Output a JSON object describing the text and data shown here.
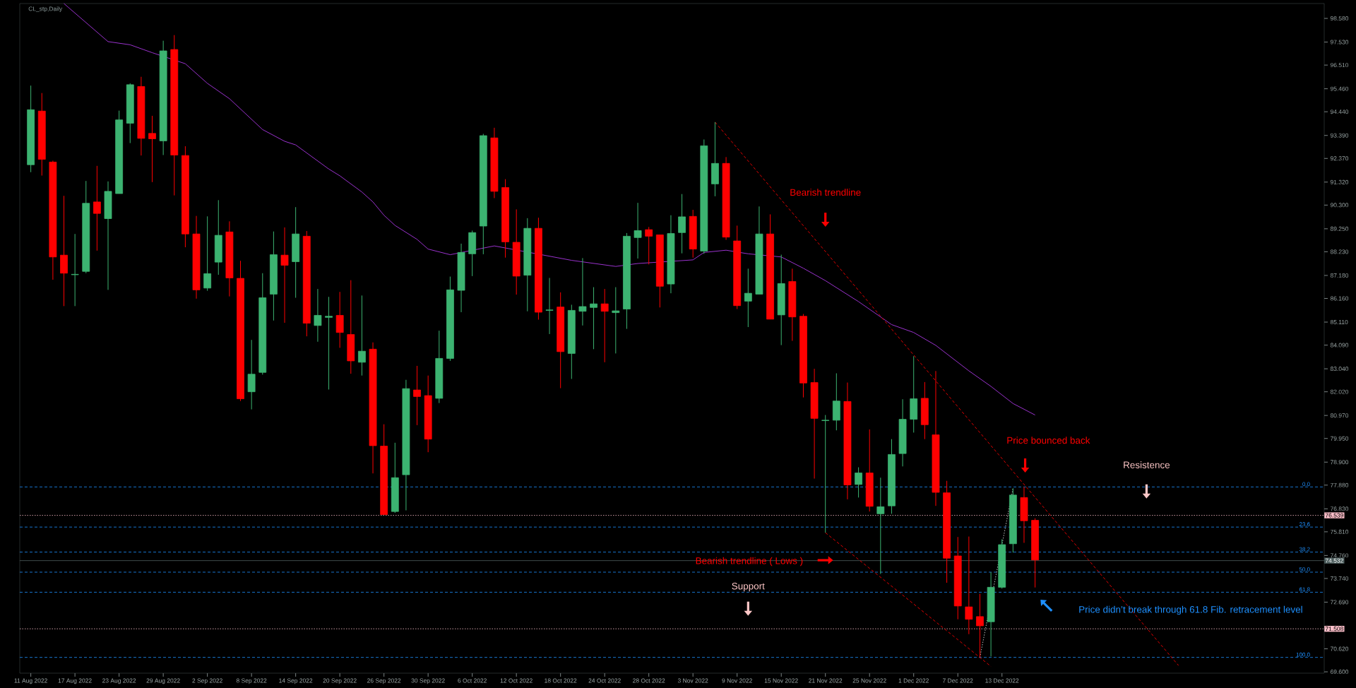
{
  "chart_data": {
    "type": "candlestick",
    "title": "CL_stp,Daily",
    "categories": [
      "11 Aug 2022",
      null,
      null,
      null,
      "17 Aug 2022",
      null,
      null,
      null,
      "23 Aug 2022",
      null,
      null,
      null,
      "29 Aug 2022",
      null,
      null,
      null,
      "2 Sep 2022",
      null,
      null,
      null,
      "8 Sep 2022",
      null,
      null,
      null,
      "14 Sep 2022",
      null,
      null,
      null,
      "20 Sep 2022",
      null,
      null,
      null,
      "26 Sep 2022",
      null,
      null,
      null,
      "30 Sep 2022",
      null,
      null,
      null,
      "6 Oct 2022",
      null,
      null,
      null,
      "12 Oct 2022",
      null,
      null,
      null,
      "18 Oct 2022",
      null,
      null,
      null,
      "24 Oct 2022",
      null,
      null,
      null,
      "28 Oct 2022",
      null,
      null,
      null,
      "3 Nov 2022",
      null,
      null,
      null,
      "9 Nov 2022",
      null,
      null,
      null,
      "15 Nov 2022",
      null,
      null,
      null,
      "21 Nov 2022",
      null,
      null,
      null,
      "25 Nov 2022",
      null,
      null,
      null,
      "1 Dec 2022",
      null,
      null,
      null,
      "7 Dec 2022",
      null,
      null,
      null,
      "13 Dec 2022",
      null,
      null,
      null,
      null,
      null,
      null,
      null,
      null,
      null,
      null,
      null,
      null,
      null,
      null,
      null,
      null,
      null,
      null,
      null,
      null,
      null,
      null,
      null,
      null,
      null,
      null,
      null,
      null,
      null
    ],
    "ohlc": [
      [
        92.09,
        95.6,
        91.76,
        94.53
      ],
      [
        94.47,
        95.27,
        91.61,
        92.33
      ],
      [
        92.21,
        92.27,
        86.99,
        88.0
      ],
      [
        88.08,
        90.71,
        85.82,
        87.28
      ],
      [
        87.21,
        89.02,
        85.82,
        87.23
      ],
      [
        87.36,
        91.37,
        87.28,
        90.38
      ],
      [
        90.44,
        92.04,
        88.28,
        89.93
      ],
      [
        89.7,
        91.35,
        86.54,
        90.91
      ],
      [
        90.81,
        94.49,
        90.81,
        94.08
      ],
      [
        93.93,
        95.7,
        93.05,
        95.64
      ],
      [
        95.56,
        95.99,
        92.5,
        93.26
      ],
      [
        93.48,
        94.26,
        91.32,
        93.24
      ],
      [
        93.15,
        97.59,
        92.52,
        97.14
      ],
      [
        97.2,
        97.84,
        90.73,
        92.52
      ],
      [
        92.5,
        92.91,
        88.43,
        89.02
      ],
      [
        89.02,
        89.82,
        86.15,
        86.54
      ],
      [
        86.62,
        89.8,
        86.5,
        87.26
      ],
      [
        87.77,
        90.52,
        87.21,
        88.96
      ],
      [
        89.11,
        89.58,
        86.25,
        87.07
      ],
      [
        87.05,
        87.83,
        81.61,
        81.71
      ],
      [
        82.02,
        84.32,
        81.24,
        82.8
      ],
      [
        82.88,
        87.28,
        82.78,
        86.19
      ],
      [
        86.35,
        89.13,
        85.18,
        88.1
      ],
      [
        88.08,
        89.31,
        85.08,
        87.63
      ],
      [
        87.79,
        90.21,
        86.19,
        89.02
      ],
      [
        88.92,
        89.15,
        84.48,
        85.06
      ],
      [
        84.96,
        86.58,
        84.24,
        85.41
      ],
      [
        85.32,
        86.23,
        82.12,
        85.37
      ],
      [
        85.41,
        86.45,
        83.97,
        84.65
      ],
      [
        84.56,
        86.97,
        82.82,
        83.39
      ],
      [
        83.33,
        86.29,
        82.74,
        83.82
      ],
      [
        83.91,
        84.21,
        78.4,
        79.63
      ],
      [
        79.61,
        80.58,
        76.57,
        76.57
      ],
      [
        76.71,
        79.76,
        76.65,
        78.21
      ],
      [
        78.34,
        82.55,
        76.76,
        82.16
      ],
      [
        82.1,
        83.17,
        80.54,
        81.81
      ],
      [
        81.85,
        82.74,
        79.34,
        79.92
      ],
      [
        81.73,
        84.73,
        81.52,
        83.5
      ],
      [
        83.5,
        87.13,
        83.39,
        86.54
      ],
      [
        86.52,
        88.59,
        85.55,
        88.2
      ],
      [
        88.14,
        89.17,
        87.15,
        89.08
      ],
      [
        89.37,
        93.46,
        88.12,
        93.38
      ],
      [
        93.28,
        93.73,
        90.61,
        90.91
      ],
      [
        91.08,
        91.45,
        87.97,
        88.67
      ],
      [
        88.65,
        90.11,
        86.33,
        87.15
      ],
      [
        87.19,
        89.72,
        85.59,
        89.27
      ],
      [
        89.27,
        89.74,
        85.22,
        85.55
      ],
      [
        85.63,
        87.07,
        84.58,
        85.65
      ],
      [
        85.78,
        86.43,
        82.18,
        83.8
      ],
      [
        83.72,
        85.88,
        82.59,
        85.63
      ],
      [
        85.59,
        87.95,
        84.96,
        85.8
      ],
      [
        85.76,
        86.66,
        83.91,
        85.92
      ],
      [
        85.92,
        86.58,
        83.33,
        85.59
      ],
      [
        85.53,
        86.66,
        83.72,
        85.61
      ],
      [
        85.69,
        89.06,
        84.81,
        88.92
      ],
      [
        88.86,
        90.4,
        87.93,
        89.17
      ],
      [
        89.21,
        89.33,
        87.67,
        88.92
      ],
      [
        88.98,
        88.98,
        85.76,
        86.7
      ],
      [
        86.8,
        89.85,
        86.39,
        89.04
      ],
      [
        89.08,
        90.79,
        88.16,
        89.78
      ],
      [
        89.8,
        90.09,
        87.97,
        88.35
      ],
      [
        88.26,
        93.21,
        88.14,
        92.93
      ],
      [
        91.24,
        93.98,
        90.69,
        92.15
      ],
      [
        92.15,
        92.43,
        88.76,
        88.88
      ],
      [
        88.71,
        89.39,
        85.69,
        85.84
      ],
      [
        86.04,
        87.48,
        84.89,
        86.39
      ],
      [
        86.35,
        90.24,
        86.35,
        89.02
      ],
      [
        89.02,
        89.89,
        85.24,
        85.24
      ],
      [
        85.43,
        88.1,
        84.09,
        86.82
      ],
      [
        86.91,
        87.48,
        84.28,
        85.34
      ],
      [
        85.37,
        85.47,
        81.77,
        82.41
      ],
      [
        82.43,
        83.04,
        78.17,
        80.84
      ],
      [
        80.74,
        80.99,
        75.77,
        80.76
      ],
      [
        80.76,
        82.84,
        80.31,
        81.61
      ],
      [
        81.59,
        82.43,
        77.25,
        77.89
      ],
      [
        77.91,
        78.67,
        77.33,
        78.42
      ],
      [
        78.42,
        80.35,
        76.71,
        76.94
      ],
      [
        76.61,
        78.21,
        73.94,
        76.92
      ],
      [
        76.96,
        79.92,
        76.61,
        79.24
      ],
      [
        79.28,
        81.69,
        78.71,
        80.8
      ],
      [
        80.8,
        83.6,
        80.21,
        81.71
      ],
      [
        81.73,
        82.45,
        79.92,
        80.56
      ],
      [
        80.11,
        82.94,
        76.96,
        77.56
      ],
      [
        77.54,
        78.07,
        73.55,
        74.64
      ],
      [
        74.74,
        75.58,
        71.93,
        72.52
      ],
      [
        72.48,
        75.6,
        71.27,
        71.93
      ],
      [
        72.05,
        73.06,
        70.24,
        71.64
      ],
      [
        71.82,
        74.02,
        70.28,
        73.35
      ],
      [
        73.35,
        75.48,
        73.29,
        75.24
      ],
      [
        75.28,
        77.74,
        74.89,
        77.44
      ],
      [
        77.33,
        77.8,
        75.32,
        76.3
      ],
      [
        76.32,
        76.41,
        73.34,
        74.56
      ],
      null,
      null,
      null,
      null,
      null,
      null,
      null,
      null,
      null,
      null,
      null,
      null,
      null,
      null,
      null,
      null,
      null,
      null,
      null,
      null,
      null,
      null,
      null,
      null,
      null,
      null
    ],
    "colors": [
      "#3cb371",
      "#ff0000",
      "#ff0000",
      "#ff0000",
      "#3cb371",
      "#3cb371",
      "#ff0000",
      "#3cb371",
      "#3cb371",
      "#3cb371",
      "#ff0000",
      "#ff0000",
      "#3cb371",
      "#ff0000",
      "#ff0000",
      "#ff0000",
      "#3cb371",
      "#3cb371",
      "#ff0000",
      "#ff0000",
      "#3cb371",
      "#3cb371",
      "#3cb371",
      "#ff0000",
      "#3cb371",
      "#ff0000",
      "#3cb371",
      "#3cb371",
      "#ff0000",
      "#ff0000",
      "#3cb371",
      "#ff0000",
      "#ff0000",
      "#3cb371",
      "#3cb371",
      "#ff0000",
      "#ff0000",
      "#3cb371",
      "#3cb371",
      "#3cb371",
      "#3cb371",
      "#3cb371",
      "#ff0000",
      "#ff0000",
      "#ff0000",
      "#3cb371",
      "#ff0000",
      "#3cb371",
      "#ff0000",
      "#3cb371",
      "#3cb371",
      "#3cb371",
      "#ff0000",
      "#3cb371",
      "#3cb371",
      "#3cb371",
      "#ff0000",
      "#ff0000",
      "#3cb371",
      "#3cb371",
      "#ff0000",
      "#3cb371",
      "#3cb371",
      "#ff0000",
      "#ff0000",
      "#3cb371",
      "#3cb371",
      "#ff0000",
      "#3cb371",
      "#ff0000",
      "#ff0000",
      "#ff0000",
      "#3cb371",
      "#3cb371",
      "#ff0000",
      "#3cb371",
      "#ff0000",
      "#3cb371",
      "#3cb371",
      "#3cb371",
      "#3cb371",
      "#ff0000",
      "#ff0000",
      "#ff0000",
      "#ff0000",
      "#ff0000",
      "#ff0000",
      "#3cb371",
      "#3cb371",
      "#3cb371",
      "#ff0000",
      "#ff0000",
      null,
      null,
      null,
      null,
      null,
      null,
      null,
      null,
      null,
      null,
      null,
      null,
      null,
      null,
      null,
      null,
      null,
      null,
      null,
      null,
      null,
      null,
      null,
      null,
      null,
      null
    ],
    "series": [
      {
        "type": "line",
        "color": "#9932cc",
        "line_style": "solid",
        "values": [
          null,
          null,
          null,
          99.24,
          null,
          null,
          null,
          97.55,
          null,
          97.41,
          null,
          97.06,
          null,
          null,
          96.57,
          null,
          95.7,
          null,
          95.02,
          null,
          null,
          93.65,
          null,
          93.13,
          92.97,
          null,
          null,
          91.9,
          91.6,
          null,
          90.88,
          90.44,
          89.85,
          89.4,
          null,
          88.78,
          88.35,
          null,
          88.1,
          null,
          null,
          null,
          88.49,
          null,
          null,
          null,
          null,
          null,
          null,
          87.85,
          null,
          null,
          null,
          87.58,
          null,
          87.71,
          null,
          null,
          null,
          null,
          87.87,
          88.2,
          null,
          88.3,
          null,
          88.14,
          null,
          null,
          88.0,
          null,
          87.5,
          null,
          86.95,
          null,
          null,
          86.02,
          null,
          null,
          85.0,
          null,
          84.65,
          null,
          84.08,
          null,
          null,
          82.95,
          null,
          82.26,
          null,
          81.5,
          null,
          80.99,
          null,
          null,
          null,
          null,
          null,
          null,
          null,
          null,
          null,
          null,
          null,
          null,
          null,
          null,
          null,
          null,
          null,
          null,
          null,
          null,
          null,
          null,
          null,
          null,
          null,
          null
        ]
      },
      {
        "type": "line",
        "color": "#e00000",
        "line_style": "dashed",
        "values": [
          null,
          null,
          null,
          null,
          null,
          null,
          null,
          null,
          null,
          null,
          null,
          null,
          null,
          null,
          null,
          null,
          null,
          null,
          null,
          null,
          null,
          null,
          null,
          null,
          null,
          null,
          null,
          null,
          null,
          null,
          null,
          null,
          null,
          null,
          null,
          null,
          null,
          null,
          null,
          null,
          null,
          null,
          null,
          null,
          null,
          null,
          null,
          null,
          null,
          null,
          null,
          null,
          null,
          null,
          null,
          null,
          null,
          null,
          null,
          null,
          null,
          null,
          93.98,
          null,
          null,
          null,
          null,
          null,
          null,
          null,
          null,
          null,
          null,
          null,
          null,
          null,
          null,
          null,
          null,
          null,
          null,
          null,
          null,
          null,
          null,
          null,
          null,
          null,
          null,
          null,
          null,
          null,
          null,
          null,
          null,
          null,
          null,
          null,
          null,
          null,
          null,
          null,
          null,
          null,
          69.88,
          null,
          null,
          null,
          null,
          null,
          null,
          null,
          null,
          null,
          null,
          null,
          null,
          null
        ]
      },
      {
        "type": "line",
        "color": "#e00000",
        "line_style": "dashed",
        "values": [
          null,
          null,
          null,
          null,
          null,
          null,
          null,
          null,
          null,
          null,
          null,
          null,
          null,
          null,
          null,
          null,
          null,
          null,
          null,
          null,
          null,
          null,
          null,
          null,
          null,
          null,
          null,
          null,
          null,
          null,
          null,
          null,
          null,
          null,
          null,
          null,
          null,
          null,
          null,
          null,
          null,
          null,
          null,
          null,
          null,
          null,
          null,
          null,
          null,
          null,
          null,
          null,
          null,
          null,
          null,
          null,
          null,
          null,
          null,
          null,
          null,
          null,
          null,
          null,
          null,
          null,
          null,
          null,
          null,
          null,
          null,
          null,
          75.77,
          null,
          null,
          null,
          null,
          null,
          null,
          null,
          null,
          null,
          null,
          null,
          null,
          null,
          null,
          69.84,
          null,
          null,
          null,
          null,
          null,
          null,
          null,
          null,
          null,
          null,
          null,
          null,
          null,
          null,
          null,
          null,
          null,
          null,
          null,
          null,
          null,
          null,
          null,
          null,
          null,
          null,
          null,
          null,
          null,
          null
        ]
      },
      {
        "type": "line",
        "color": "#c0c0c0",
        "line_style": "dotted",
        "values": [
          null,
          null,
          null,
          null,
          null,
          null,
          null,
          null,
          null,
          null,
          null,
          null,
          null,
          null,
          null,
          null,
          null,
          null,
          null,
          null,
          null,
          null,
          null,
          null,
          null,
          null,
          null,
          null,
          null,
          null,
          null,
          null,
          null,
          null,
          null,
          null,
          null,
          null,
          null,
          null,
          null,
          null,
          null,
          null,
          null,
          null,
          null,
          null,
          null,
          null,
          null,
          null,
          null,
          null,
          null,
          null,
          null,
          null,
          null,
          null,
          null,
          null,
          null,
          null,
          null,
          null,
          null,
          null,
          null,
          null,
          null,
          null,
          null,
          null,
          null,
          null,
          null,
          null,
          null,
          null,
          null,
          null,
          null,
          null,
          null,
          null,
          70.24,
          null,
          null,
          77.74,
          null,
          null,
          null,
          null,
          null,
          null,
          null,
          null,
          null,
          null,
          null,
          null,
          null,
          null,
          null,
          null,
          null,
          null,
          null,
          null,
          null,
          null,
          null,
          null,
          null,
          null,
          null,
          null
        ]
      }
    ],
    "ylim": [
      69.54,
      99.24
    ],
    "yticks": [
      {
        "value": 98.58,
        "label": "98.580"
      },
      {
        "value": 97.53,
        "label": "97.530"
      },
      {
        "value": 96.51,
        "label": "96.510"
      },
      {
        "value": 95.46,
        "label": "95.460"
      },
      {
        "value": 94.44,
        "label": "94.440"
      },
      {
        "value": 93.39,
        "label": "93.390"
      },
      {
        "value": 92.37,
        "label": "92.370"
      },
      {
        "value": 91.32,
        "label": "91.320"
      },
      {
        "value": 90.3,
        "label": "90.300"
      },
      {
        "value": 89.25,
        "label": "89.250"
      },
      {
        "value": 88.23,
        "label": "88.230"
      },
      {
        "value": 87.18,
        "label": "87.180"
      },
      {
        "value": 86.16,
        "label": "86.160"
      },
      {
        "value": 85.11,
        "label": "85.110"
      },
      {
        "value": 84.09,
        "label": "84.090"
      },
      {
        "value": 83.04,
        "label": "83.040"
      },
      {
        "value": 82.02,
        "label": "82.020"
      },
      {
        "value": 80.97,
        "label": "80.970"
      },
      {
        "value": 79.95,
        "label": "79.950"
      },
      {
        "value": 78.9,
        "label": "78.900"
      },
      {
        "value": 77.88,
        "label": "77.880"
      },
      {
        "value": 76.83,
        "label": "76.830"
      },
      {
        "value": 75.81,
        "label": "75.810"
      },
      {
        "value": 74.76,
        "label": "74.760"
      },
      {
        "value": 73.74,
        "label": "73.740"
      },
      {
        "value": 72.69,
        "label": "72.690"
      },
      {
        "value": 70.62,
        "label": "70.620"
      },
      {
        "value": 69.6,
        "label": "69.600"
      }
    ],
    "ref_lines": [
      {
        "axis": "y",
        "value": 76.539,
        "label": "76.539",
        "color": "#ffc0cb",
        "line_style": "dotted"
      },
      {
        "axis": "y",
        "value": 71.508,
        "label": "71.508",
        "color": "#ffc0cb",
        "line_style": "dotted"
      },
      {
        "axis": "y",
        "value": 74.532,
        "label": "74.532",
        "color": "#4f6060",
        "line_style": "solid"
      },
      {
        "axis": "y",
        "value": 77.8,
        "color": "#1e90ff",
        "line_style": "dashed"
      },
      {
        "axis": "y",
        "value": 76.02,
        "color": "#1e90ff",
        "line_style": "dashed"
      },
      {
        "axis": "y",
        "value": 74.91,
        "color": "#1e90ff",
        "line_style": "dashed"
      },
      {
        "axis": "y",
        "value": 74.02,
        "color": "#1e90ff",
        "line_style": "dashed"
      },
      {
        "axis": "y",
        "value": 73.13,
        "color": "#1e90ff",
        "line_style": "dashed"
      },
      {
        "axis": "y",
        "value": 70.24,
        "color": "#1e90ff",
        "line_style": "dashed"
      }
    ],
    "annotations": [
      "Bearish trendline",
      "Price bounced back",
      "Resistence",
      "Bearish trendline ( Lows )",
      "Support",
      "Price didn’t break through 61.8 Fib. retracement level",
      {
        "text": "0.0",
        "y": 77.8
      },
      {
        "text": "23.6",
        "y": 76.02
      },
      {
        "text": "38.2",
        "y": 74.91
      },
      {
        "text": "50.0",
        "y": 74.02
      },
      {
        "text": "61.8",
        "y": 73.13
      },
      {
        "text": "100.0",
        "y": 70.24
      }
    ]
  }
}
